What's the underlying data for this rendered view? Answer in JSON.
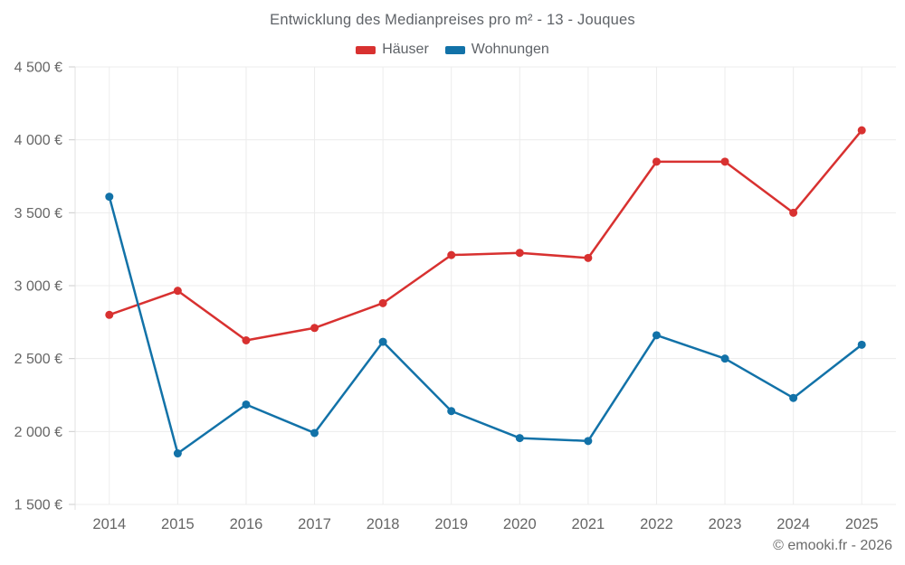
{
  "page": {
    "footer": "© emooki.fr - 2026"
  },
  "chart_data": {
    "type": "line",
    "title": "Entwicklung des Medianpreises pro m² - 13 - Jouques",
    "categories": [
      "2014",
      "2015",
      "2016",
      "2017",
      "2018",
      "2019",
      "2020",
      "2021",
      "2022",
      "2023",
      "2024",
      "2025"
    ],
    "series": [
      {
        "name": "Häuser",
        "color": "#d83130",
        "values": [
          2800,
          2965,
          2625,
          2710,
          2880,
          3210,
          3225,
          3190,
          3850,
          3850,
          3500,
          4065
        ]
      },
      {
        "name": "Wohnungen",
        "color": "#1272a8",
        "values": [
          3610,
          1850,
          2185,
          1990,
          2615,
          2140,
          1955,
          1935,
          2660,
          2500,
          2230,
          2595
        ]
      }
    ],
    "xlabel": "",
    "ylabel": "",
    "ylim": [
      1500,
      4500
    ],
    "ytick_step": 500,
    "ytick_labels": [
      "1 500 €",
      "2 000 €",
      "2 500 €",
      "3 000 €",
      "3 500 €",
      "4 000 €",
      "4 500 €"
    ],
    "grid": true,
    "legend_position": "top",
    "style": {
      "grid_color": "#ececec",
      "axis_border_color": "#e0e0e0",
      "tick_color": "#cccccc",
      "text_color": "#666666"
    }
  }
}
